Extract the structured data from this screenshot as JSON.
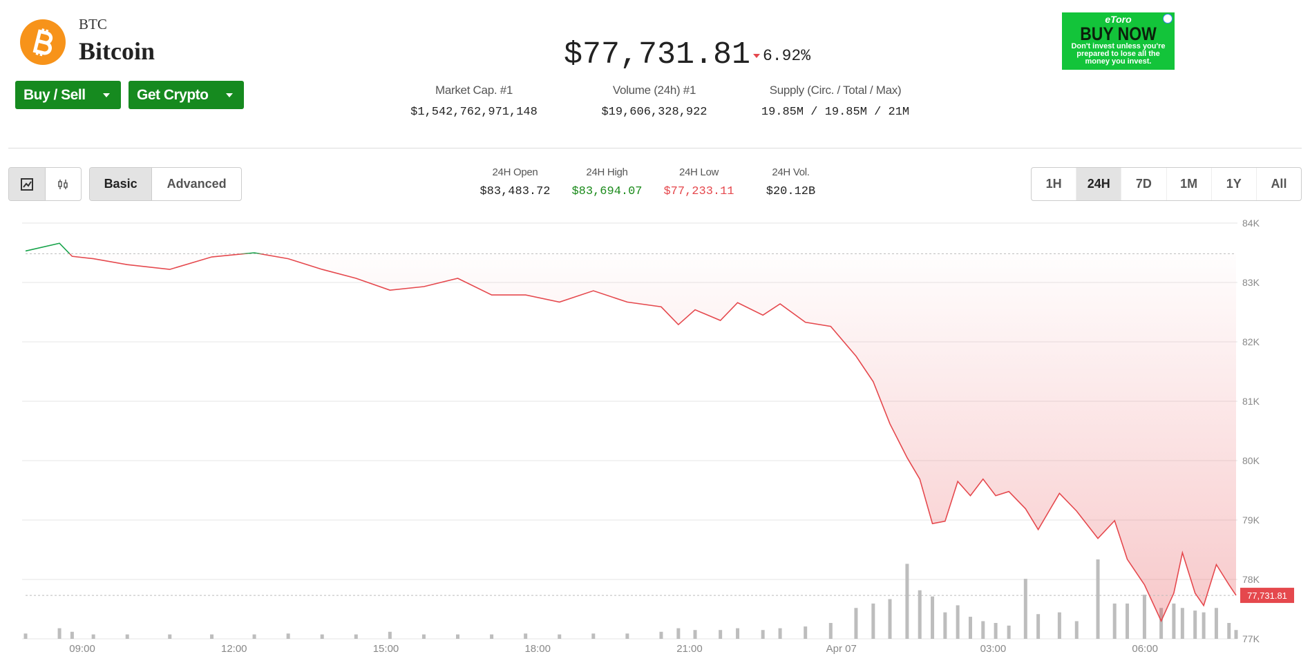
{
  "header": {
    "symbol": "BTC",
    "name": "Bitcoin",
    "buttons": [
      "Buy / Sell",
      "Get Crypto"
    ],
    "price": "$77,731.81",
    "change": "6.92%",
    "stats": [
      {
        "label": "Market Cap. #1",
        "value": "$1,542,762,971,148"
      },
      {
        "label": "Volume (24h) #1",
        "value": "$19,606,328,922"
      },
      {
        "label": "Supply (Circ. / Total / Max)",
        "value": "19.85M / 19.85M / 21M"
      }
    ]
  },
  "ad": {
    "brand": "eToro",
    "cta": "BUY NOW",
    "disclaimer": "Don't invest unless you're prepared to lose all the money you invest."
  },
  "toolbar": {
    "modes": [
      "Basic",
      "Advanced"
    ],
    "active_mode": 0,
    "stats": [
      {
        "label": "24H Open",
        "value": "$83,483.72",
        "color": "#222222"
      },
      {
        "label": "24H High",
        "value": "$83,694.07",
        "color": "#1a8a1a"
      },
      {
        "label": "24H Low",
        "value": "$77,233.11",
        "color": "#e5484d"
      },
      {
        "label": "24H Vol.",
        "value": "$20.12B",
        "color": "#222222"
      }
    ],
    "ranges": [
      "1H",
      "24H",
      "7D",
      "1M",
      "1Y",
      "All"
    ],
    "active_range": 1
  },
  "chart_data": {
    "type": "line",
    "color": "#e5484d",
    "up_color": "#16a34a",
    "volume_color": "#bdbdbd",
    "grid": true,
    "open": 83483.72,
    "current_price_label": "77,731.81",
    "x": [
      7.88,
      8.55,
      8.8,
      9.22,
      9.89,
      10.73,
      11.56,
      12.4,
      13.07,
      13.74,
      14.41,
      15.08,
      15.75,
      16.42,
      17.09,
      17.76,
      18.43,
      19.1,
      19.77,
      20.44,
      20.78,
      21.11,
      21.61,
      21.95,
      22.45,
      22.79,
      23.29,
      23.79,
      24.29,
      24.63,
      24.96,
      25.3,
      25.55,
      25.8,
      26.05,
      26.3,
      26.55,
      26.8,
      27.05,
      27.31,
      27.64,
      27.89,
      28.31,
      28.65,
      29.07,
      29.4,
      29.65,
      29.99,
      30.32,
      30.57,
      30.74,
      30.99,
      31.16,
      31.41,
      31.66,
      31.8
    ],
    "values": [
      83530,
      83660,
      83440,
      83400,
      83300,
      83220,
      83430,
      83500,
      83400,
      83220,
      83070,
      82870,
      82930,
      83070,
      82790,
      82790,
      82670,
      82860,
      82670,
      82590,
      82290,
      82540,
      82360,
      82660,
      82450,
      82640,
      82330,
      82260,
      81760,
      81330,
      80620,
      80050,
      79690,
      78940,
      78980,
      79650,
      79410,
      79690,
      79410,
      79480,
      79190,
      78840,
      79450,
      79150,
      78690,
      78990,
      78340,
      77910,
      77300,
      77770,
      78450,
      77770,
      77560,
      78250,
      77910,
      77731.81
    ],
    "volume": [
      6,
      12,
      8,
      5,
      5,
      5,
      5,
      5,
      6,
      5,
      5,
      8,
      5,
      5,
      5,
      6,
      5,
      6,
      6,
      8,
      12,
      10,
      10,
      12,
      10,
      12,
      14,
      18,
      35,
      40,
      45,
      85,
      55,
      48,
      30,
      38,
      25,
      20,
      18,
      15,
      68,
      28,
      30,
      20,
      90,
      40,
      40,
      50,
      35,
      40,
      35,
      32,
      30,
      35,
      18,
      10
    ],
    "xlim": [
      7.88,
      31.8
    ],
    "ylim": [
      77000,
      84000
    ],
    "xticks": [
      {
        "value": 9,
        "label": "09:00"
      },
      {
        "value": 12,
        "label": "12:00"
      },
      {
        "value": 15,
        "label": "15:00"
      },
      {
        "value": 18,
        "label": "18:00"
      },
      {
        "value": 21,
        "label": "21:00"
      },
      {
        "value": 24,
        "label": "Apr 07"
      },
      {
        "value": 27,
        "label": "03:00"
      },
      {
        "value": 30,
        "label": "06:00"
      }
    ],
    "yticks": [
      {
        "value": 77000,
        "label": "77K"
      },
      {
        "value": 78000,
        "label": "78K"
      },
      {
        "value": 79000,
        "label": "79K"
      },
      {
        "value": 80000,
        "label": "80K"
      },
      {
        "value": 81000,
        "label": "81K"
      },
      {
        "value": 82000,
        "label": "82K"
      },
      {
        "value": 83000,
        "label": "83K"
      },
      {
        "value": 84000,
        "label": "84K"
      }
    ]
  }
}
